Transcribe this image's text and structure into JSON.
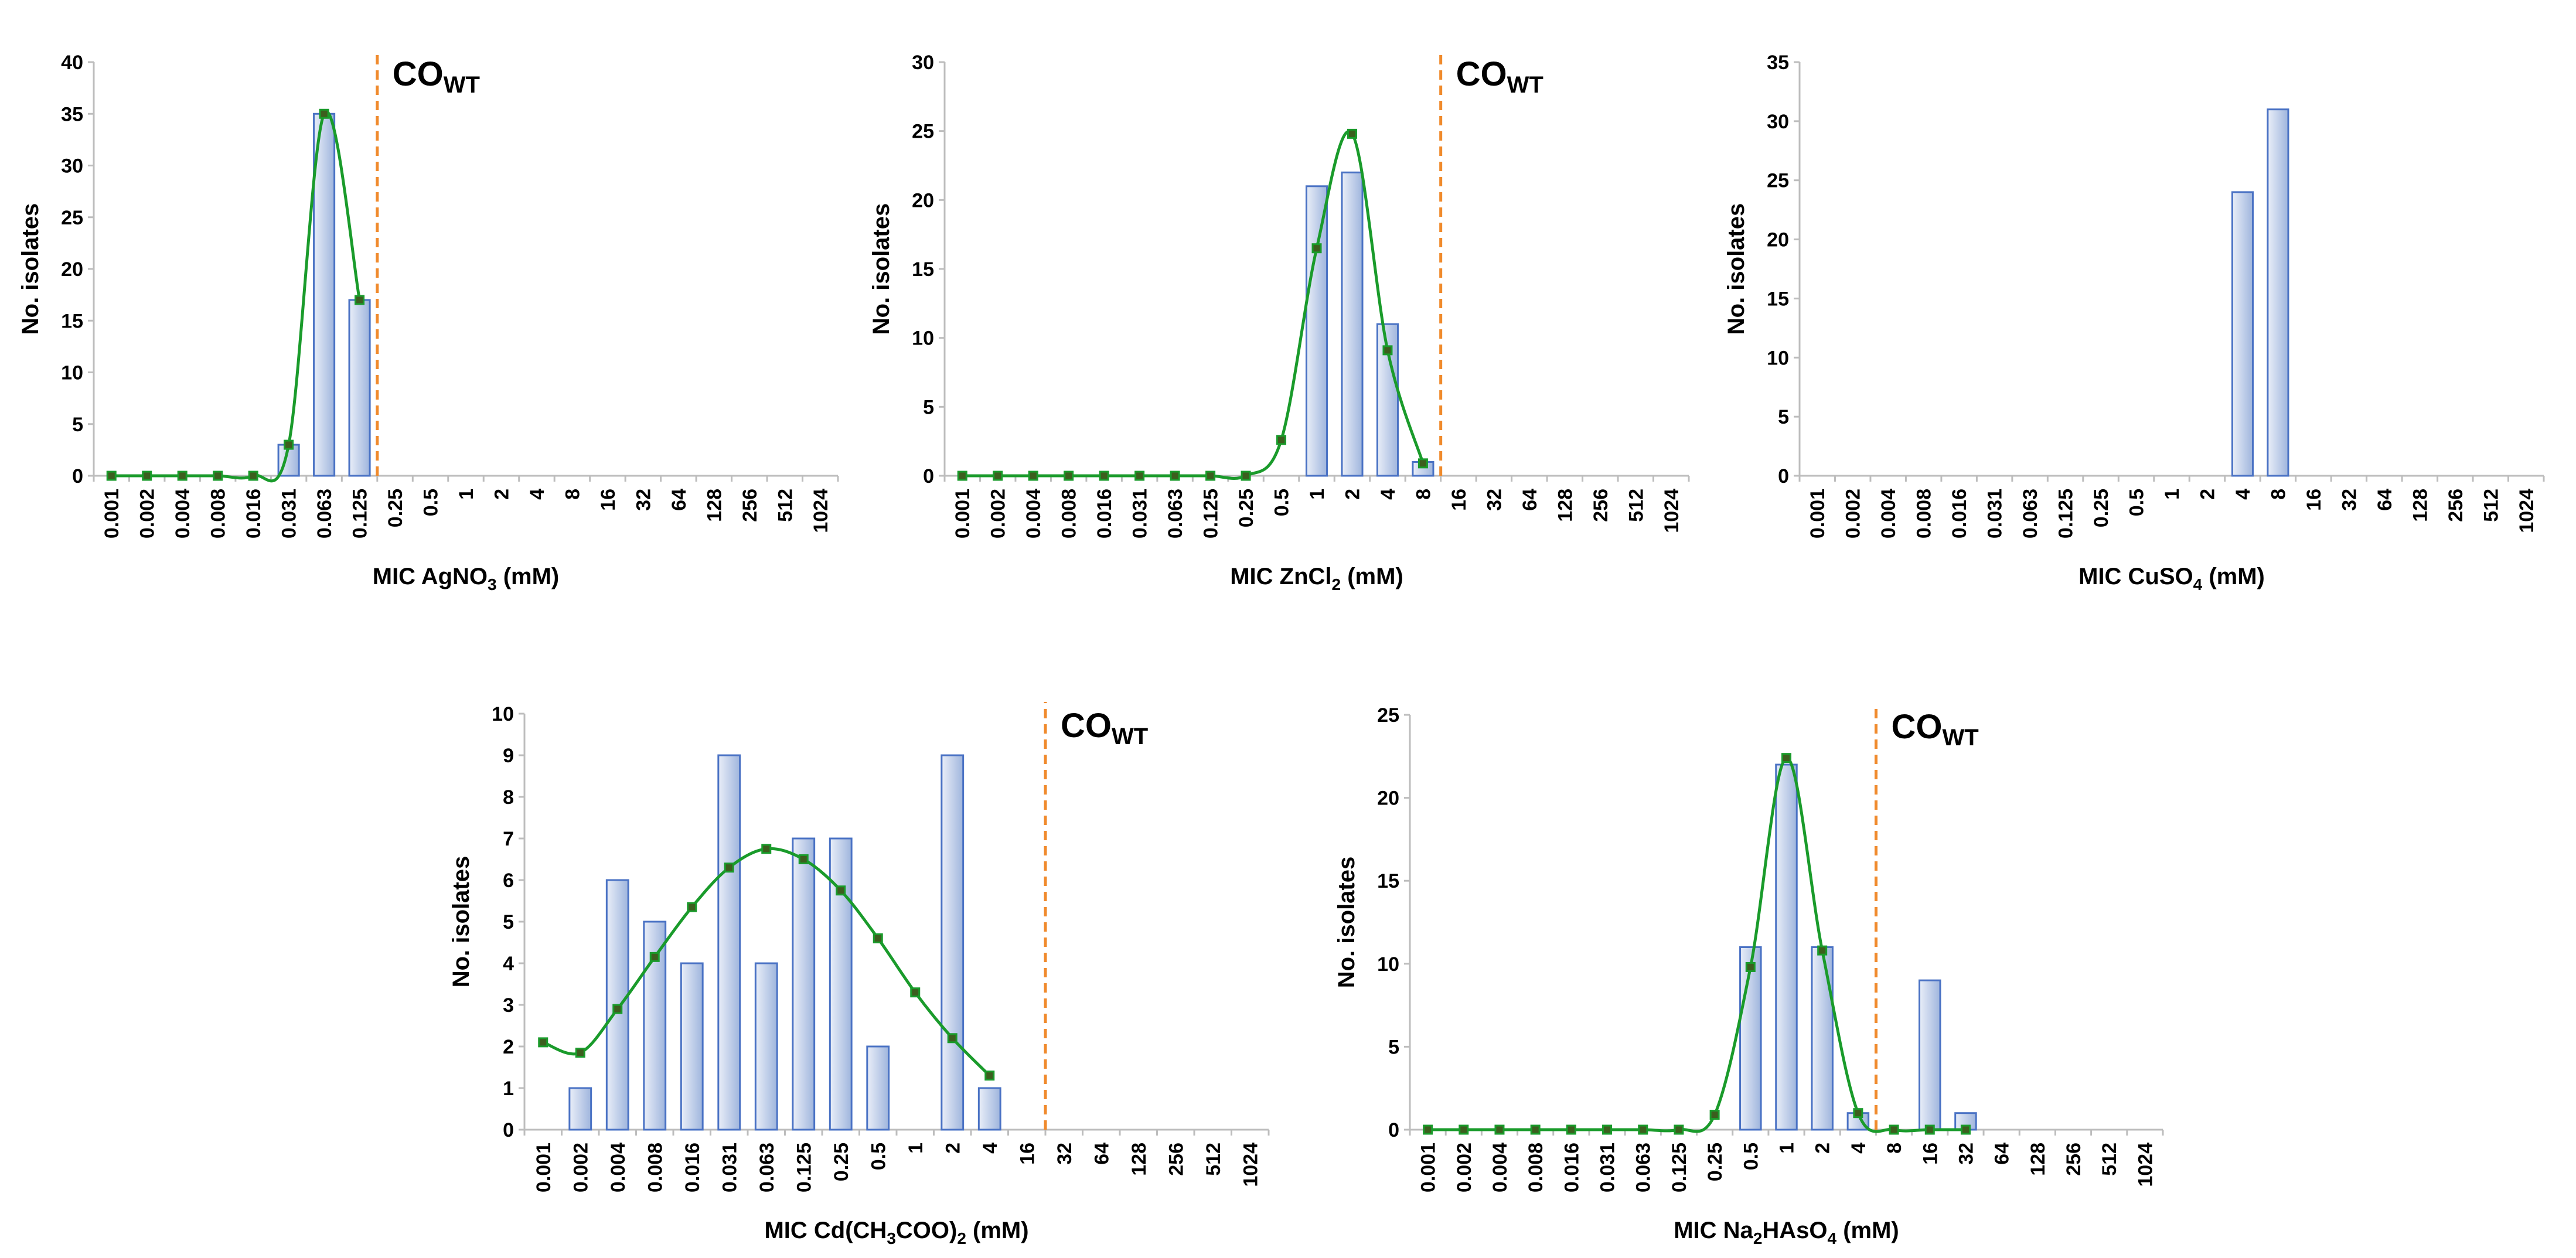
{
  "colors": {
    "bar_fill_light": "#e9eef8",
    "bar_fill_dark": "#9fb5dd",
    "bar_stroke": "#4a72c4",
    "curve": "#1a9b2b",
    "marker_fill": "#3c5e1e",
    "cutoff": "#f08a2c",
    "axis": "#bdbdbd"
  },
  "chart_data": [
    {
      "id": "agno3",
      "type": "bar",
      "title": "",
      "ylabel": "No. isolates",
      "xlabel_prefix": "MIC AgNO",
      "xlabel_sub": "3",
      "xlabel_suffix": " (mM)",
      "categories": [
        "0.001",
        "0.002",
        "0.004",
        "0.008",
        "0.016",
        "0.031",
        "0.063",
        "0.125",
        "0.25",
        "0.5",
        "1",
        "2",
        "4",
        "8",
        "16",
        "32",
        "64",
        "128",
        "256",
        "512",
        "1024"
      ],
      "values": [
        0,
        0,
        0,
        0,
        0,
        3,
        35,
        17,
        null,
        null,
        null,
        null,
        null,
        null,
        null,
        null,
        null,
        null,
        null,
        null,
        null
      ],
      "ylim": [
        0,
        40
      ],
      "yticks": [
        "0",
        "5",
        "10",
        "15",
        "20",
        "25",
        "30",
        "35",
        "40"
      ],
      "curve": [
        [
          0,
          0
        ],
        [
          1,
          0
        ],
        [
          2,
          0
        ],
        [
          3,
          0
        ],
        [
          4,
          0
        ],
        [
          5,
          3
        ],
        [
          6,
          35
        ],
        [
          7,
          17
        ]
      ],
      "cutoff": {
        "label_main": "CO",
        "label_sub": "WT",
        "position": 7.5
      }
    },
    {
      "id": "zncl2",
      "type": "bar",
      "title": "",
      "ylabel": "No. isolates",
      "xlabel_prefix": "MIC ZnCl",
      "xlabel_sub": "2",
      "xlabel_suffix": " (mM)",
      "categories": [
        "0.001",
        "0.002",
        "0.004",
        "0.008",
        "0.016",
        "0.031",
        "0.063",
        "0.125",
        "0.25",
        "0.5",
        "1",
        "2",
        "4",
        "8",
        "16",
        "32",
        "64",
        "128",
        "256",
        "512",
        "1024"
      ],
      "values": [
        null,
        null,
        null,
        null,
        null,
        null,
        null,
        null,
        null,
        null,
        21,
        22,
        11,
        1,
        null,
        null,
        null,
        null,
        null,
        null,
        null
      ],
      "ylim": [
        0,
        30
      ],
      "yticks": [
        "0",
        "5",
        "10",
        "15",
        "20",
        "25",
        "30"
      ],
      "curve": [
        [
          0,
          0
        ],
        [
          1,
          0
        ],
        [
          2,
          0
        ],
        [
          3,
          0
        ],
        [
          4,
          0
        ],
        [
          5,
          0
        ],
        [
          6,
          0
        ],
        [
          7,
          0
        ],
        [
          8,
          0
        ],
        [
          9,
          2.6
        ],
        [
          10,
          16.5
        ],
        [
          11,
          24.8
        ],
        [
          12,
          9.1
        ],
        [
          13,
          0.9
        ]
      ],
      "cutoff": {
        "label_main": "CO",
        "label_sub": "WT",
        "position": 13.5
      }
    },
    {
      "id": "cuso4",
      "type": "bar",
      "title": "",
      "ylabel": "No. isolates",
      "xlabel_prefix": "MIC CuSO",
      "xlabel_sub": "4",
      "xlabel_suffix": " (mM)",
      "categories": [
        "0.001",
        "0.002",
        "0.004",
        "0.008",
        "0.016",
        "0.031",
        "0.063",
        "0.125",
        "0.25",
        "0.5",
        "1",
        "2",
        "4",
        "8",
        "16",
        "32",
        "64",
        "128",
        "256",
        "512",
        "1024"
      ],
      "values": [
        null,
        null,
        null,
        null,
        null,
        null,
        null,
        null,
        null,
        null,
        null,
        null,
        24,
        31,
        null,
        null,
        null,
        null,
        null,
        null,
        null
      ],
      "ylim": [
        0,
        35
      ],
      "yticks": [
        "0",
        "5",
        "10",
        "15",
        "20",
        "25",
        "30",
        "35"
      ],
      "curve": [],
      "cutoff": null
    },
    {
      "id": "cdac",
      "type": "bar",
      "title": "",
      "ylabel": "No. isolates",
      "xlabel_prefix": "MIC Cd(CH",
      "xlabel_sub": "3",
      "xlabel_suffix": "COO)",
      "xlabel_sub2": "2",
      "xlabel_suffix2": " (mM)",
      "categories": [
        "0.001",
        "0.002",
        "0.004",
        "0.008",
        "0.016",
        "0.031",
        "0.063",
        "0.125",
        "0.25",
        "0.5",
        "1",
        "2",
        "4",
        "16",
        "32",
        "64",
        "128",
        "256",
        "512",
        "1024"
      ],
      "values": [
        null,
        1,
        6,
        5,
        4,
        9,
        4,
        7,
        7,
        2,
        null,
        9,
        1,
        null,
        null,
        null,
        null,
        null,
        null,
        null
      ],
      "ylim": [
        0,
        10
      ],
      "yticks": [
        "0",
        "1",
        "2",
        "3",
        "4",
        "5",
        "6",
        "7",
        "8",
        "9",
        "10"
      ],
      "curve": [
        [
          0,
          2.1
        ],
        [
          1,
          1.85
        ],
        [
          2,
          2.9
        ],
        [
          3,
          4.15
        ],
        [
          4,
          5.35
        ],
        [
          5,
          6.3
        ],
        [
          6,
          6.75
        ],
        [
          7,
          6.5
        ],
        [
          8,
          5.75
        ],
        [
          9,
          4.6
        ],
        [
          10,
          3.3
        ],
        [
          11,
          2.2
        ],
        [
          12,
          1.3
        ]
      ],
      "cutoff": {
        "label_main": "CO",
        "label_sub": "WT",
        "position": 13.5
      }
    },
    {
      "id": "na2hаso4",
      "type": "bar",
      "title": "",
      "ylabel": "No. isolates",
      "xlabel_prefix": "MIC Na",
      "xlabel_sub": "2",
      "xlabel_suffix": "HAsO",
      "xlabel_sub2": "4",
      "xlabel_suffix2": " (mM)",
      "categories": [
        "0.001",
        "0.002",
        "0.004",
        "0.008",
        "0.016",
        "0.031",
        "0.063",
        "0.125",
        "0.25",
        "0.5",
        "1",
        "2",
        "4",
        "8",
        "16",
        "32",
        "64",
        "128",
        "256",
        "512",
        "1024"
      ],
      "values": [
        null,
        null,
        null,
        null,
        null,
        null,
        null,
        null,
        null,
        11,
        22,
        11,
        1,
        null,
        9,
        1,
        null,
        null,
        null,
        null,
        null
      ],
      "ylim": [
        0,
        25
      ],
      "yticks": [
        "0",
        "5",
        "10",
        "15",
        "20",
        "25"
      ],
      "curve": [
        [
          0,
          0
        ],
        [
          1,
          0
        ],
        [
          2,
          0
        ],
        [
          3,
          0
        ],
        [
          4,
          0
        ],
        [
          5,
          0
        ],
        [
          6,
          0
        ],
        [
          7,
          0
        ],
        [
          8,
          0.9
        ],
        [
          9,
          9.8
        ],
        [
          10,
          22.4
        ],
        [
          11,
          10.8
        ],
        [
          12,
          1
        ],
        [
          13,
          0
        ],
        [
          14,
          0
        ],
        [
          15,
          0
        ]
      ],
      "cutoff": {
        "label_main": "CO",
        "label_sub": "WT",
        "position": 12.5
      }
    }
  ]
}
